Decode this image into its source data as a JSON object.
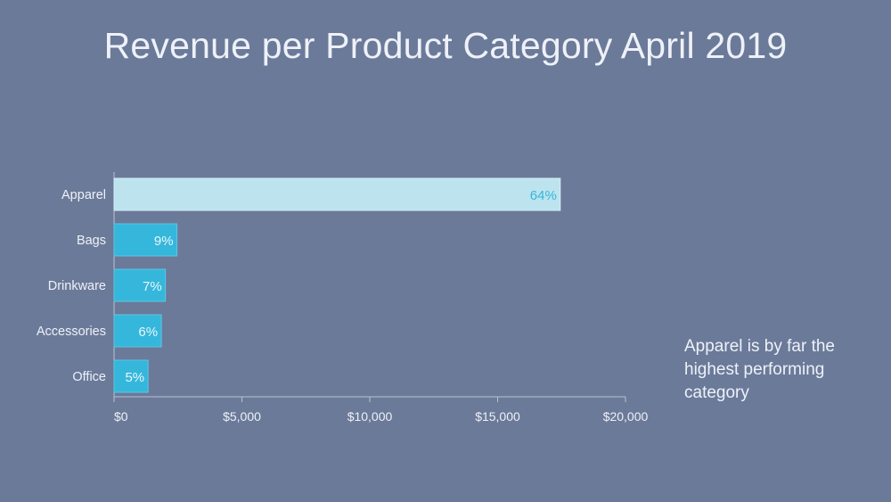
{
  "slide": {
    "title": "Revenue per Product Category April 2019",
    "annotation": "Apparel is by far the highest performing category"
  },
  "chart_data": {
    "type": "bar",
    "orientation": "horizontal",
    "title": "Revenue per Product Category April 2019",
    "categories": [
      "Apparel",
      "Bags",
      "Drinkware",
      "Accessories",
      "Office"
    ],
    "values": [
      17450,
      2460,
      2010,
      1850,
      1330
    ],
    "data_labels": [
      "64%",
      "9%",
      "7%",
      "6%",
      "5%"
    ],
    "xlim": [
      0,
      20000
    ],
    "xticks": [
      0,
      5000,
      10000,
      15000,
      20000
    ],
    "xtick_labels": [
      "$0",
      "$5,000",
      "$10,000",
      "$15,000",
      "$20,000"
    ],
    "xlabel": "",
    "ylabel": "",
    "grid": false,
    "legend": "none",
    "highlight_index": 0,
    "colors": {
      "background": "#6b7a99",
      "highlight_bar": "#bde3ee",
      "highlight_label": "#35b7db",
      "bar": "#35b7db",
      "bar_label": "#e8f6fb",
      "axis": "#b9c2d4",
      "axis_text": "#eef1f8"
    }
  }
}
